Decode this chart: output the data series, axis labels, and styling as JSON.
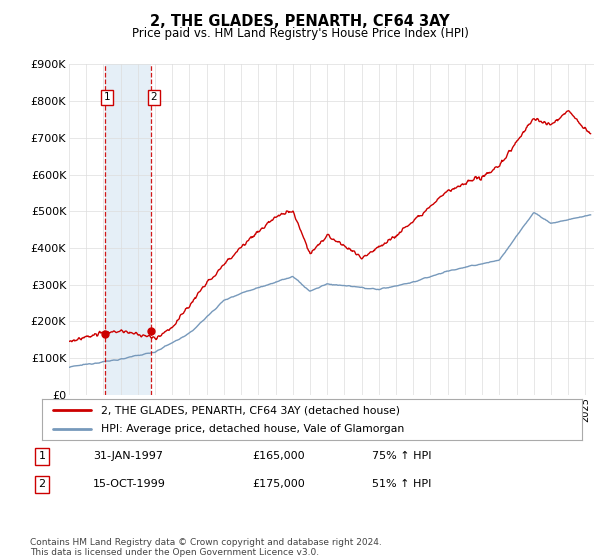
{
  "title": "2, THE GLADES, PENARTH, CF64 3AY",
  "subtitle": "Price paid vs. HM Land Registry's House Price Index (HPI)",
  "ylim": [
    0,
    900000
  ],
  "yticks": [
    0,
    100000,
    200000,
    300000,
    400000,
    500000,
    600000,
    700000,
    800000,
    900000
  ],
  "ytick_labels": [
    "£0",
    "£100K",
    "£200K",
    "£300K",
    "£400K",
    "£500K",
    "£600K",
    "£700K",
    "£800K",
    "£900K"
  ],
  "xlim_start": 1995.0,
  "xlim_end": 2025.5,
  "purchases": [
    {
      "label": "1",
      "date_num": 1997.08,
      "price": 165000,
      "text": "31-JAN-1997",
      "price_text": "£165,000",
      "hpi_text": "75% ↑ HPI"
    },
    {
      "label": "2",
      "date_num": 1999.79,
      "price": 175000,
      "text": "15-OCT-1999",
      "price_text": "£175,000",
      "hpi_text": "51% ↑ HPI"
    }
  ],
  "line1_color": "#cc0000",
  "line2_color": "#7799bb",
  "legend_line1": "2, THE GLADES, PENARTH, CF64 3AY (detached house)",
  "legend_line2": "HPI: Average price, detached house, Vale of Glamorgan",
  "footnote": "Contains HM Land Registry data © Crown copyright and database right 2024.\nThis data is licensed under the Open Government Licence v3.0.",
  "plot_bg_color": "#ffffff",
  "grid_color": "#dddddd",
  "shade_color": "#cce0f0"
}
